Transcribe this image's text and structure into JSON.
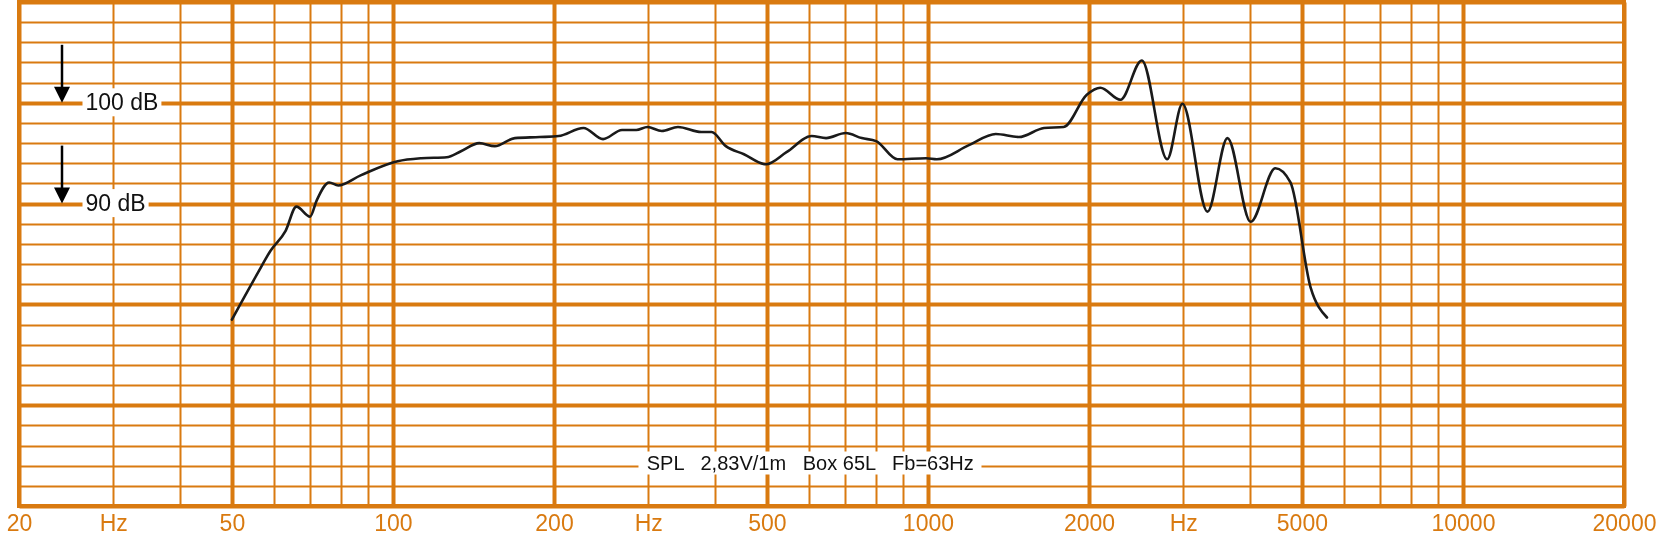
{
  "chart_data": {
    "type": "line",
    "log": "x",
    "grid": true,
    "xlim": [
      20,
      20000
    ],
    "ylim": [
      60,
      110
    ],
    "xticks": [
      20,
      {
        "value": 30,
        "label": "Hz"
      },
      {
        "value": 40,
        "label": null
      },
      50,
      {
        "value": 60,
        "label": null
      },
      {
        "value": 70,
        "label": null
      },
      {
        "value": 80,
        "label": null
      },
      {
        "value": 90,
        "label": null
      },
      100,
      200,
      {
        "value": 300,
        "label": "Hz"
      },
      {
        "value": 400,
        "label": null
      },
      500,
      {
        "value": 600,
        "label": null
      },
      {
        "value": 700,
        "label": null
      },
      {
        "value": 800,
        "label": null
      },
      {
        "value": 900,
        "label": null
      },
      1000,
      2000,
      {
        "value": 3000,
        "label": "Hz"
      },
      {
        "value": 4000,
        "label": null
      },
      5000,
      {
        "value": 6000,
        "label": null
      },
      {
        "value": 7000,
        "label": null
      },
      {
        "value": 8000,
        "label": null
      },
      {
        "value": 9000,
        "label": null
      },
      10000,
      20000
    ],
    "yticks": [
      {
        "value": 60,
        "label": null
      },
      {
        "value": 62,
        "label": null
      },
      {
        "value": 64,
        "label": null
      },
      {
        "value": 66,
        "label": null
      },
      {
        "value": 68,
        "label": null
      },
      {
        "value": 70,
        "label": null
      },
      {
        "value": 72,
        "label": null
      },
      {
        "value": 74,
        "label": null
      },
      {
        "value": 76,
        "label": null
      },
      {
        "value": 78,
        "label": null
      },
      {
        "value": 80,
        "label": null
      },
      {
        "value": 82,
        "label": null
      },
      {
        "value": 84,
        "label": null
      },
      {
        "value": 86,
        "label": null
      },
      {
        "value": 88,
        "label": null
      },
      {
        "value": 90,
        "label": "90 dB"
      },
      {
        "value": 92,
        "label": null
      },
      {
        "value": 94,
        "label": null
      },
      {
        "value": 96,
        "label": null
      },
      {
        "value": 98,
        "label": null
      },
      {
        "value": 100,
        "label": "100 dB"
      },
      {
        "value": 102,
        "label": null
      },
      {
        "value": 104,
        "label": null
      },
      {
        "value": 106,
        "label": null
      },
      {
        "value": 108,
        "label": null
      },
      {
        "value": 110,
        "label": null
      }
    ],
    "annotations": [
      "SPL   2,83V/1m   Box 65L   Fb=63Hz"
    ],
    "x": [
      50,
      56,
      59,
      63,
      66,
      70,
      72,
      76,
      79,
      87,
      102,
      113,
      126,
      134,
      145,
      155,
      169,
      188,
      204,
      227,
      247,
      268,
      285,
      299,
      318,
      341,
      377,
      394,
      419,
      453,
      498,
      544,
      606,
      645,
      702,
      752,
      800,
      877,
      992,
      1039,
      1193,
      1339,
      1479,
      1648,
      1793,
      1981,
      2100,
      2290,
      2510,
      2800,
      2990,
      3330,
      3630,
      4010,
      4460,
      4760,
      5190,
      5570
    ],
    "series": [
      {
        "color": "#1a1a1a",
        "values": [
          78.5,
          83.2,
          85.3,
          87.3,
          89.7,
          88.7,
          90.3,
          92.1,
          91.8,
          92.8,
          94.2,
          94.5,
          94.6,
          95.2,
          96.0,
          95.7,
          96.5,
          96.6,
          96.7,
          97.5,
          96.4,
          97.3,
          97.3,
          97.6,
          97.2,
          97.6,
          97.1,
          97.1,
          95.7,
          94.9,
          93.9,
          95.1,
          96.7,
          96.5,
          97.0,
          96.5,
          96.2,
          94.4,
          94.5,
          94.4,
          95.8,
          96.9,
          96.6,
          97.5,
          97.6,
          100.8,
          101.5,
          100.3,
          104.2,
          94.4,
          99.9,
          89.2,
          96.5,
          88.2,
          93.5,
          92.1,
          81.7,
          78.7
        ]
      }
    ]
  }
}
